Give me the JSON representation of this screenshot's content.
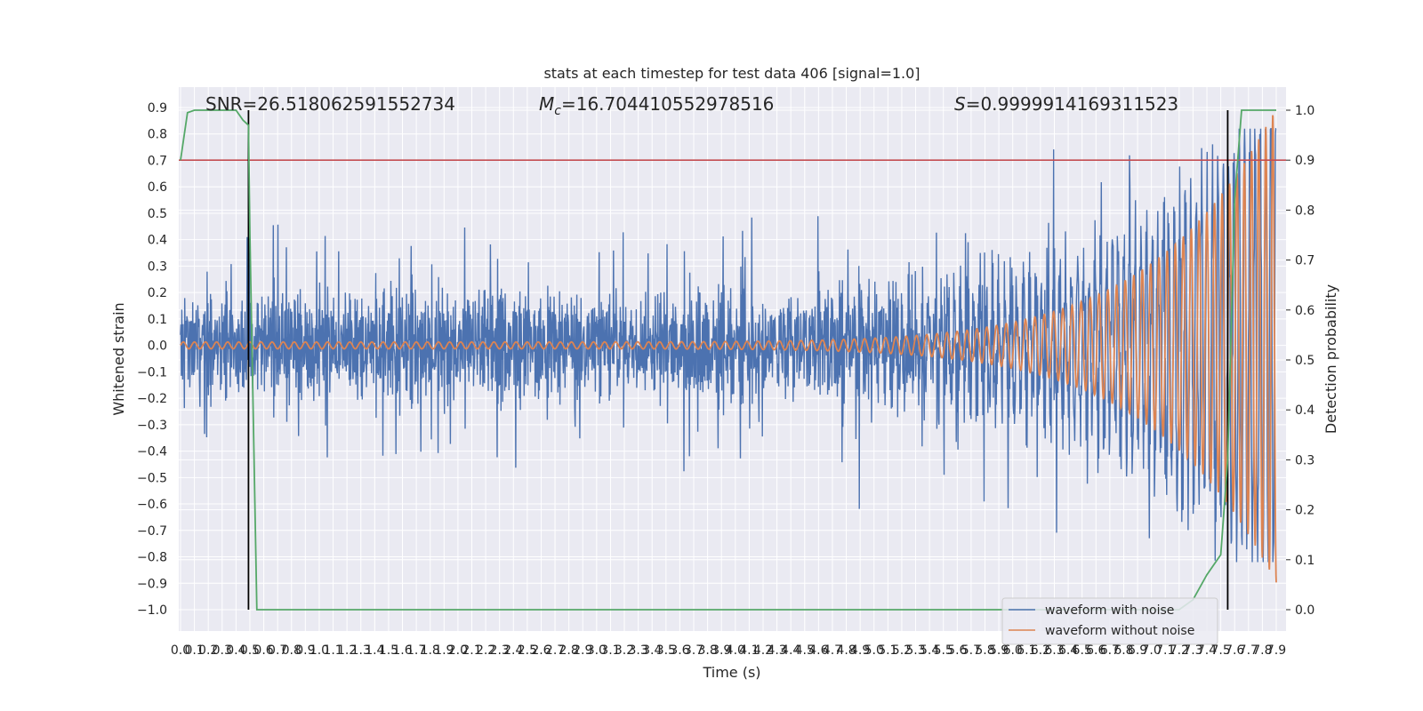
{
  "chart_data": {
    "type": "line",
    "title": "stats at each timestep for test data 406 [signal=1.0]",
    "xlabel": "Time (s)",
    "ylabel_left": "Whitened strain",
    "ylabel_right": "Detection probability",
    "xlim": [
      0.0,
      7.9
    ],
    "ylim_left": [
      -1.0,
      0.9
    ],
    "ylim_right": [
      0.0,
      1.0
    ],
    "x_ticks": [
      "0.0",
      "0.1",
      "0.2",
      "0.3",
      "0.4",
      "0.5",
      "0.6",
      "0.7",
      "0.8",
      "0.9",
      "1.0",
      "1.1",
      "1.2",
      "1.3",
      "1.4",
      "1.5",
      "1.6",
      "1.7",
      "1.8",
      "1.9",
      "2.0",
      "2.1",
      "2.2",
      "2.3",
      "2.4",
      "2.5",
      "2.6",
      "2.7",
      "2.8",
      "2.9",
      "3.0",
      "3.1",
      "3.2",
      "3.3",
      "3.4",
      "3.5",
      "3.6",
      "3.7",
      "3.8",
      "3.9",
      "4.0",
      "4.1",
      "4.2",
      "4.3",
      "4.4",
      "4.5",
      "4.6",
      "4.7",
      "4.8",
      "4.9",
      "5.0",
      "5.1",
      "5.2",
      "5.3",
      "5.4",
      "5.5",
      "5.6",
      "5.7",
      "5.8",
      "5.9",
      "6.0",
      "6.1",
      "6.2",
      "6.3",
      "6.4",
      "6.5",
      "6.6",
      "6.7",
      "6.8",
      "6.9",
      "7.0",
      "7.1",
      "7.2",
      "7.3",
      "7.4",
      "7.5",
      "7.6",
      "7.7",
      "7.8",
      "7.9"
    ],
    "y_ticks_left": [
      "0.9",
      "0.8",
      "0.7",
      "0.6",
      "0.5",
      "0.4",
      "0.3",
      "0.2",
      "0.1",
      "0.0",
      "−0.1",
      "−0.2",
      "−0.3",
      "−0.4",
      "−0.5",
      "−0.6",
      "−0.7",
      "−0.8",
      "−0.9",
      "−1.0"
    ],
    "y_ticks_right": [
      "1.0",
      "0.9",
      "0.8",
      "0.7",
      "0.6",
      "0.5",
      "0.4",
      "0.3",
      "0.2",
      "0.1",
      "0.0"
    ],
    "annotations": {
      "snr": "SNR=26.518062591552734",
      "mc_symbol": "M",
      "mc_sub": "c",
      "mc_value": "=16.704410552978516",
      "s_symbol": "S",
      "s_value": "=0.9999914169311523"
    },
    "threshold": {
      "value": 0.9,
      "axis": "right",
      "color": "#c44e52"
    },
    "vlines": [
      {
        "x": 0.49,
        "color": "#000000"
      },
      {
        "x": 7.55,
        "color": "#000000"
      }
    ],
    "series": [
      {
        "name": "waveform with noise",
        "color": "#4c72b0",
        "kind": "noise",
        "typical_abs": 0.28,
        "peak_abs": 0.85
      },
      {
        "name": "waveform without noise",
        "color": "#dd8452",
        "kind": "chirp",
        "amp_start": 0.013,
        "amp_end": 0.9,
        "t_merger": 7.9
      },
      {
        "name": "detection probability",
        "color": "#55a868",
        "axis": "right",
        "x": [
          0.0,
          0.05,
          0.1,
          0.2,
          0.3,
          0.4,
          0.45,
          0.49,
          0.5,
          0.55,
          0.6,
          1.0,
          7.0,
          7.2,
          7.3,
          7.4,
          7.5,
          7.55,
          7.6,
          7.65,
          7.7,
          7.9
        ],
        "y": [
          0.9,
          0.995,
          1.0,
          1.0,
          1.0,
          1.0,
          0.98,
          0.97,
          0.75,
          0.0,
          0.0,
          0.0,
          0.0,
          0.0,
          0.02,
          0.07,
          0.11,
          0.3,
          0.82,
          1.0,
          1.0,
          1.0
        ]
      }
    ],
    "legend_position": "lower-right",
    "grid": true
  }
}
